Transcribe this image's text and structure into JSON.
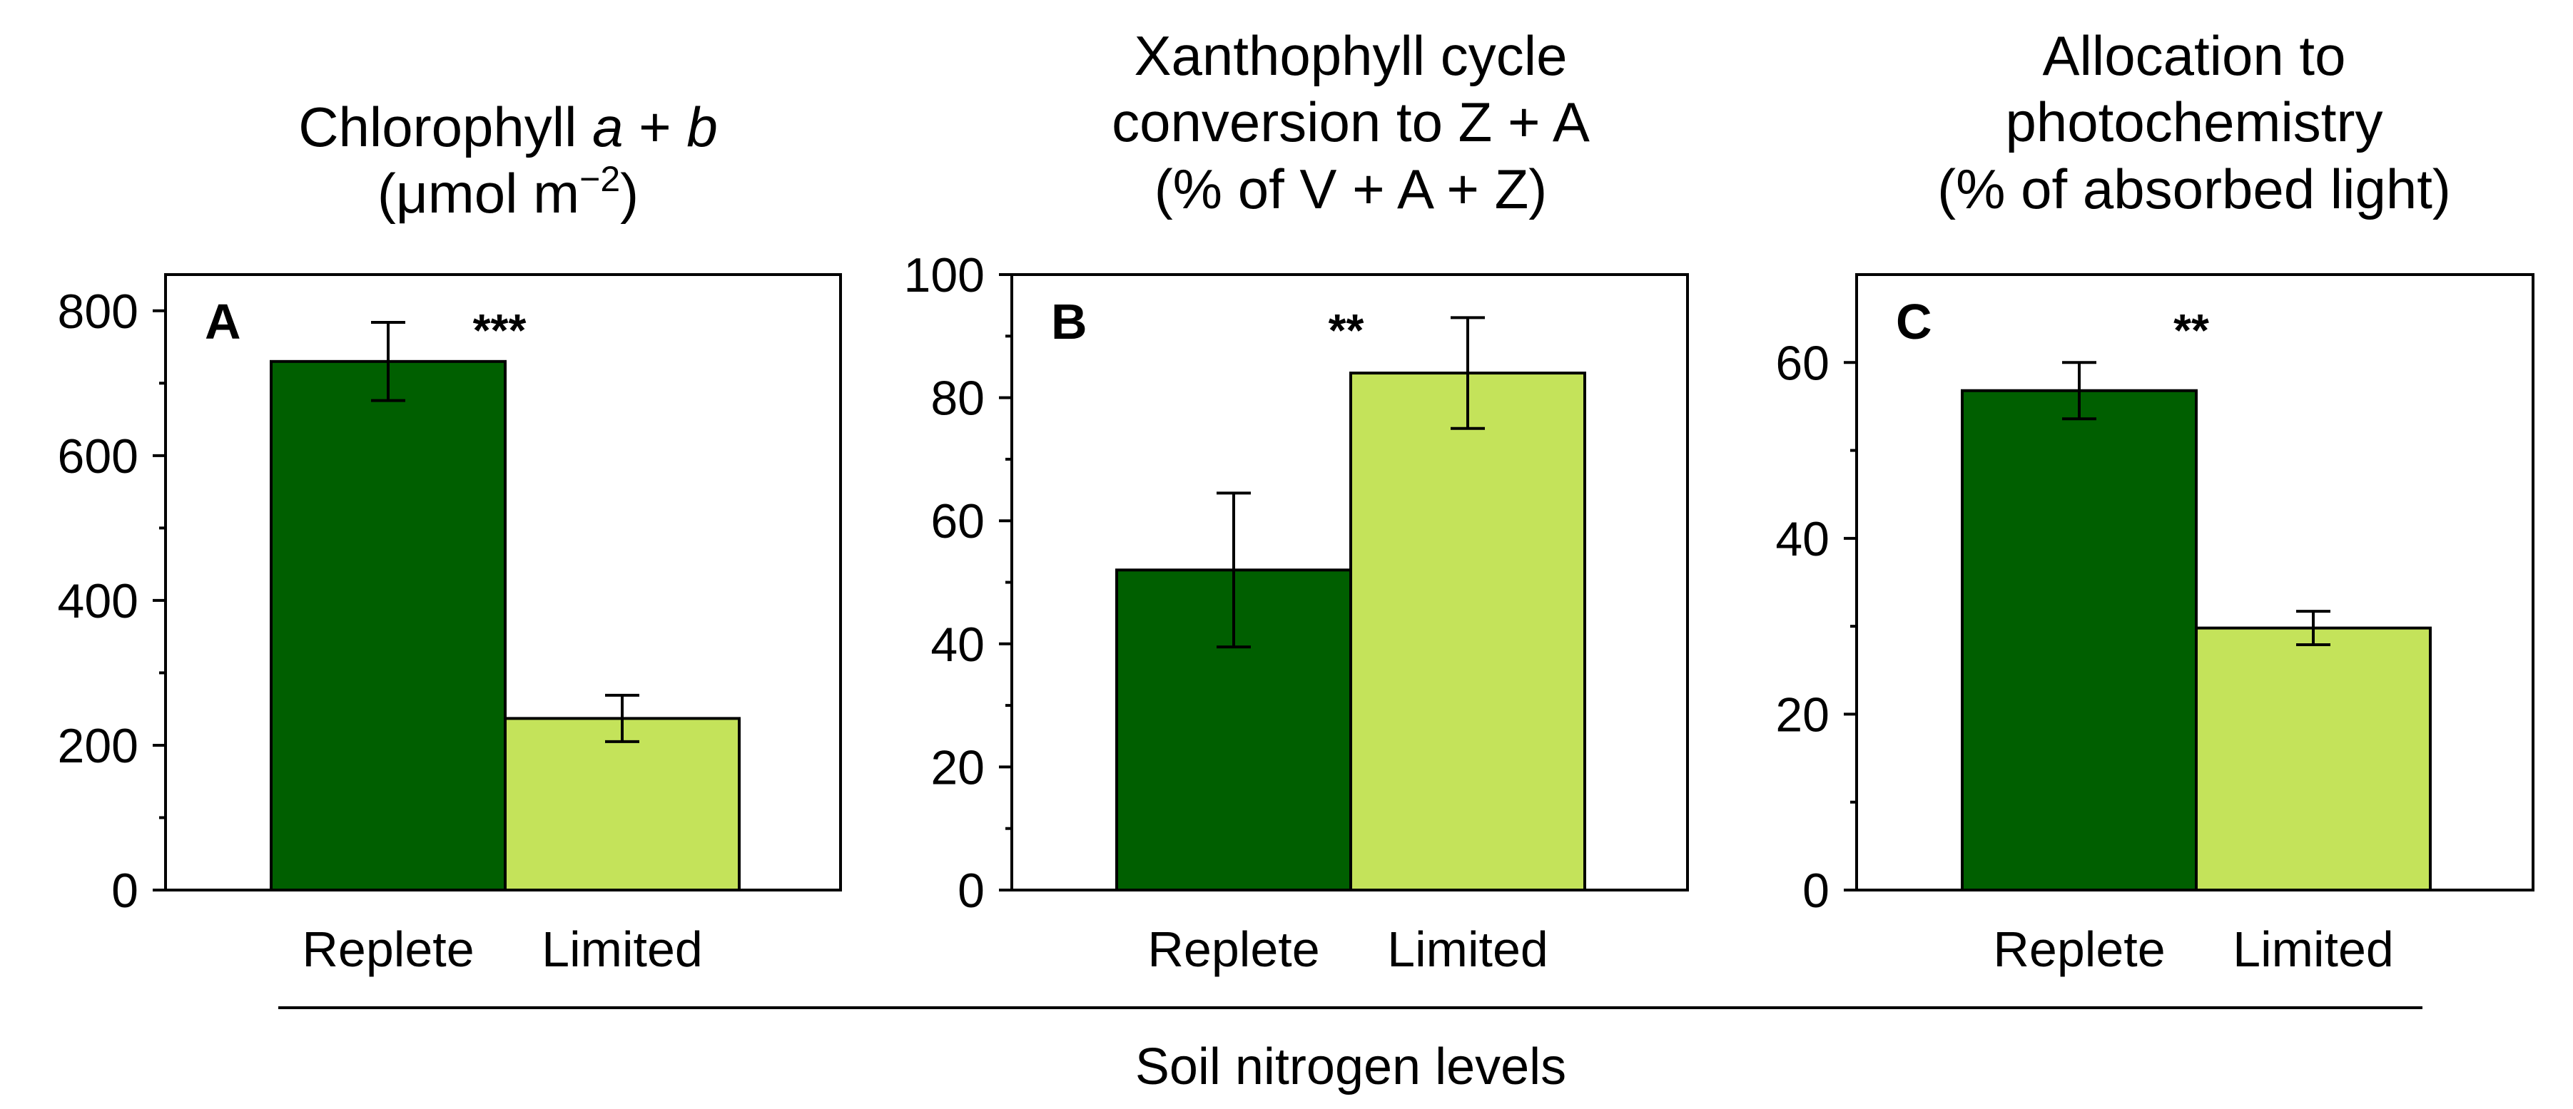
{
  "x_axis_label": "Soil nitrogen levels",
  "colors": {
    "Replete": "#005f00",
    "Limited": "#c4e35a"
  },
  "chart_data": [
    {
      "type": "bar",
      "panel": "A",
      "title_lines": [
        "Chlorophyll",
        "a",
        "+",
        "b"
      ],
      "title_line2": "(μmol m",
      "title_line2_sup": "−2",
      "title_line2_end": ")",
      "categories": [
        "Replete",
        "Limited"
      ],
      "values": [
        730,
        237
      ],
      "errors": [
        54,
        32
      ],
      "ylim": [
        0,
        850
      ],
      "yticks": [
        0,
        200,
        400,
        600,
        800
      ],
      "minor_ticks": [
        100,
        300,
        500,
        700
      ],
      "significance": "***"
    },
    {
      "type": "bar",
      "panel": "B",
      "title": [
        "Xanthophyll cycle",
        "conversion to Z + A",
        "(% of V + A + Z)"
      ],
      "categories": [
        "Replete",
        "Limited"
      ],
      "values": [
        52,
        84
      ],
      "errors": [
        12.5,
        9
      ],
      "ylim": [
        0,
        100
      ],
      "yticks": [
        0,
        20,
        40,
        60,
        80,
        100
      ],
      "minor_ticks": [
        10,
        30,
        50,
        70,
        90
      ],
      "significance": "**"
    },
    {
      "type": "bar",
      "panel": "C",
      "title": [
        "Allocation to",
        "photochemistry",
        "(% of absorbed light)"
      ],
      "categories": [
        "Replete",
        "Limited"
      ],
      "values": [
        56.8,
        29.8
      ],
      "errors": [
        3.2,
        1.9
      ],
      "ylim": [
        0,
        70
      ],
      "yticks": [
        0,
        20,
        40,
        60
      ],
      "minor_ticks": [
        10,
        30,
        50
      ],
      "significance": "**"
    }
  ]
}
